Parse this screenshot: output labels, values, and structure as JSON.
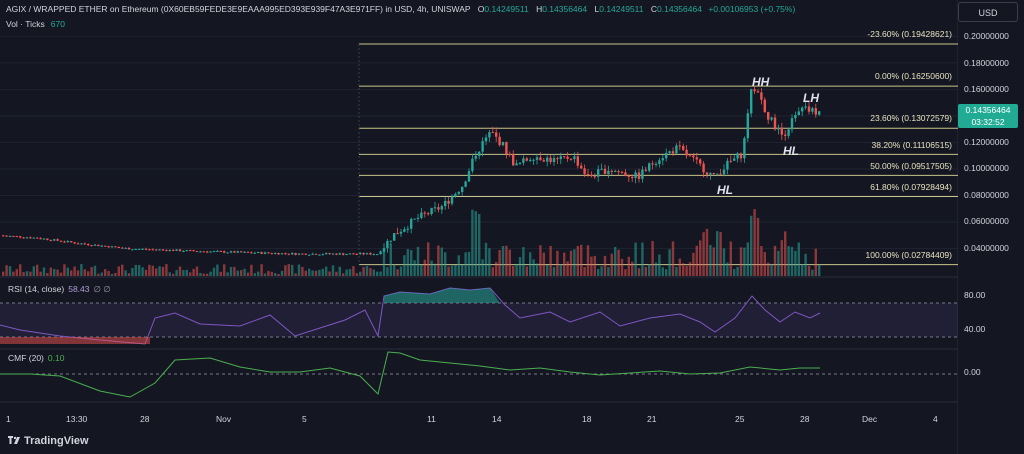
{
  "header": {
    "title": "AGIX / WRAPPED ETHER on Ethereum (0X60EB59FEDE3E9EAAA995ED393E939F47A3E971FF) in USD, 4h, UNISWAP",
    "o_label": "O",
    "o": "0.14249511",
    "h_label": "H",
    "h": "0.14356464",
    "l_label": "L",
    "l": "0.14249511",
    "c_label": "C",
    "c": "0.14356464",
    "change": "+0.00106953 (+0.75%)",
    "vol_label": "Vol · Ticks",
    "vol_value": "670"
  },
  "currency": "USD",
  "price_axis": [
    "0.20000000",
    "0.18000000",
    "0.16000000",
    "0.14000000",
    "0.12000000",
    "0.10000000",
    "0.08000000",
    "0.06000000",
    "0.04000000"
  ],
  "fib_levels": [
    {
      "label": "-23.60% (0.19428621)"
    },
    {
      "label": "0.00% (0.16250600)"
    },
    {
      "label": "23.60% (0.13072579)"
    },
    {
      "label": "38.20% (0.11106515)"
    },
    {
      "label": "50.00% (0.09517505)"
    },
    {
      "label": "61.80% (0.07928494)"
    },
    {
      "label": "100.00% (0.02784409)"
    }
  ],
  "last_price": {
    "value": "0.14356464",
    "countdown": "03:32:52"
  },
  "annotations": {
    "hh": "HH",
    "lh": "LH",
    "hl1": "HL",
    "hl2": "HL"
  },
  "rsi": {
    "title": "RSI (14, close)",
    "value": "58.43",
    "extra": "∅ ∅",
    "axis": [
      "80.00",
      "40.00"
    ]
  },
  "cmf": {
    "title": "CMF (20)",
    "value": "0.10",
    "axis": [
      "0.00"
    ]
  },
  "time_axis": [
    "1",
    "13:30",
    "28",
    "Nov",
    "5",
    "11",
    "14",
    "18",
    "21",
    "25",
    "28",
    "Dec",
    "4"
  ],
  "brand": "TradingView",
  "colors": {
    "up": "#26a69a",
    "down": "#ef5350",
    "rsi": "#7e57c2",
    "cmf": "#4caf50",
    "fib": "#c9c48a"
  }
}
